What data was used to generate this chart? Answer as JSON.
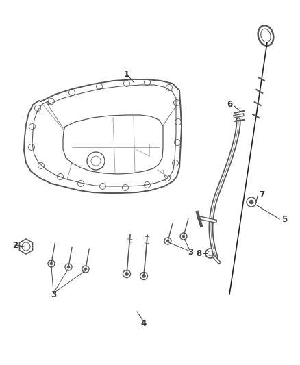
{
  "background_color": "#ffffff",
  "line_color": "#555555",
  "label_color": "#333333",
  "figure_width": 4.38,
  "figure_height": 5.33,
  "dpi": 100
}
